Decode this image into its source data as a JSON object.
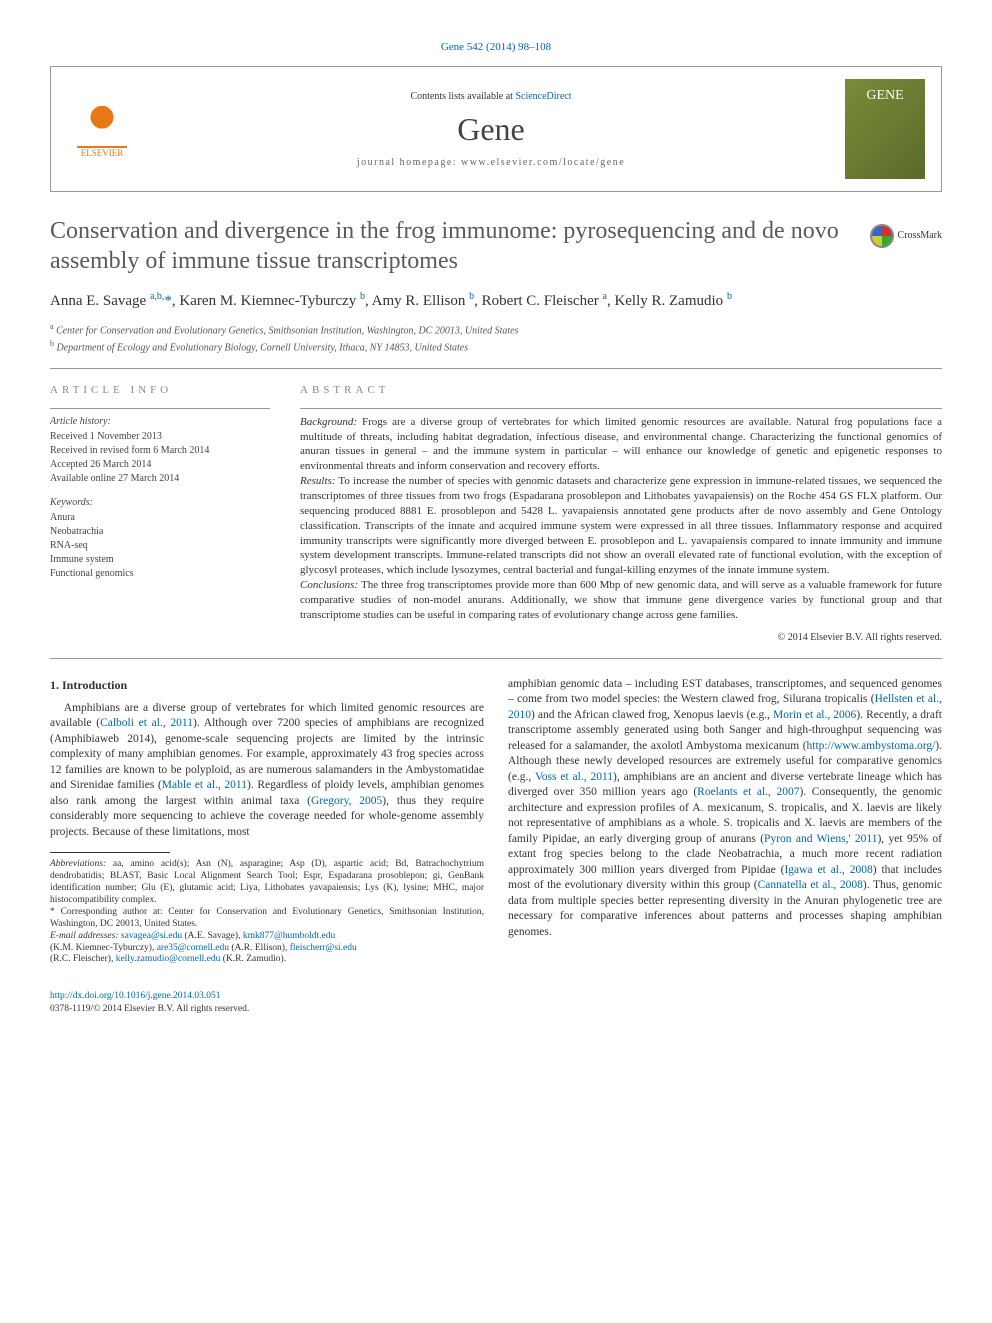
{
  "header": {
    "citation": "Gene 542 (2014) 98–108",
    "contents_prefix": "Contents lists available at ",
    "contents_link": "ScienceDirect",
    "journal": "Gene",
    "homepage_label": "journal homepage: ",
    "homepage_url": "www.elsevier.com/locate/gene",
    "elsevier": "ELSEVIER",
    "cover_label": "GENE"
  },
  "title": "Conservation and divergence in the frog immunome: pyrosequencing and de novo assembly of immune tissue transcriptomes",
  "crossmark": "CrossMark",
  "authors_html": "Anna E. Savage <sup>a,b,</sup><span class='ast'>*</span>, Karen M. Kiemnec-Tyburczy <sup>b</sup>, Amy R. Ellison <sup>b</sup>, Robert C. Fleischer <sup>a</sup>, Kelly R. Zamudio <sup>b</sup>",
  "affiliations": {
    "a": "Center for Conservation and Evolutionary Genetics, Smithsonian Institution, Washington, DC 20013, United States",
    "b": "Department of Ecology and Evolutionary Biology, Cornell University, Ithaca, NY 14853, United States"
  },
  "article_info": {
    "header": "article info",
    "history_header": "Article history:",
    "history": [
      "Received 1 November 2013",
      "Received in revised form 6 March 2014",
      "Accepted 26 March 2014",
      "Available online 27 March 2014"
    ],
    "keywords_header": "Keywords:",
    "keywords": [
      "Anura",
      "Neobatrachia",
      "RNA-seq",
      "Immune system",
      "Functional genomics"
    ]
  },
  "abstract": {
    "header": "abstract",
    "background_label": "Background:",
    "background": "Frogs are a diverse group of vertebrates for which limited genomic resources are available. Natural frog populations face a multitude of threats, including habitat degradation, infectious disease, and environmental change. Characterizing the functional genomics of anuran tissues in general – and the immune system in particular – will enhance our knowledge of genetic and epigenetic responses to environmental threats and inform conservation and recovery efforts.",
    "results_label": "Results:",
    "results": "To increase the number of species with genomic datasets and characterize gene expression in immune-related tissues, we sequenced the transcriptomes of three tissues from two frogs (Espadarana prosoblepon and Lithobates yavapaiensis) on the Roche 454 GS FLX platform. Our sequencing produced 8881 E. prosoblepon and 5428 L. yavapaiensis annotated gene products after de novo assembly and Gene Ontology classification. Transcripts of the innate and acquired immune system were expressed in all three tissues. Inflammatory response and acquired immunity transcripts were significantly more diverged between E. prosoblepon and L. yavapaiensis compared to innate immunity and immune system development transcripts. Immune-related transcripts did not show an overall elevated rate of functional evolution, with the exception of glycosyl proteases, which include lysozymes, central bacterial and fungal-killing enzymes of the innate immune system.",
    "conclusions_label": "Conclusions:",
    "conclusions": "The three frog transcriptomes provide more than 600 Mbp of new genomic data, and will serve as a valuable framework for future comparative studies of non-model anurans. Additionally, we show that immune gene divergence varies by functional group and that transcriptome studies can be useful in comparing rates of evolutionary change across gene families.",
    "copyright": "© 2014 Elsevier B.V. All rights reserved."
  },
  "body": {
    "section1_head": "1. Introduction",
    "col1_p1a": "Amphibians are a diverse group of vertebrates for which limited genomic resources are available (",
    "col1_p1_link1": "Calboli et al., 2011",
    "col1_p1b": "). Although over 7200 species of amphibians are recognized (Amphibiaweb 2014), genome-scale sequencing projects are limited by the intrinsic complexity of many amphibian genomes. For example, approximately 43 frog species across 12 families are known to be polyploid, as are numerous salamanders in the Ambystomatidae and Sirenidae families (",
    "col1_p1_link2": "Mable et al., 2011",
    "col1_p1c": "). Regardless of ploidy levels, amphibian genomes also rank among the largest within animal taxa (",
    "col1_p1_link3": "Gregory, 2005",
    "col1_p1d": "), thus they require considerably more sequencing to achieve the coverage needed for whole-genome assembly projects. Because of these limitations, most",
    "col2_p1a": "amphibian genomic data – including EST databases, transcriptomes, and sequenced genomes – come from two model species: the Western clawed frog, Silurana tropicalis (",
    "col2_link1": "Hellsten et al., 2010",
    "col2_p1b": ") and the African clawed frog, Xenopus laevis (e.g., ",
    "col2_link2": "Morin et al., 2006",
    "col2_p1c": "). Recently, a draft transcriptome assembly generated using both Sanger and high-throughput sequencing was released for a salamander, the axolotl Ambystoma mexicanum (",
    "col2_link3": "http://www.ambystoma.org/",
    "col2_p1d": "). Although these newly developed resources are extremely useful for comparative genomics (e.g., ",
    "col2_link4": "Voss et al., 2011",
    "col2_p1e": "), amphibians are an ancient and diverse vertebrate lineage which has diverged over 350 million years ago (",
    "col2_link5": "Roelants et al., 2007",
    "col2_p1f": "). Consequently, the genomic architecture and expression profiles of A. mexicanum, S. tropicalis, and X. laevis are likely not representative of amphibians as a whole. S. tropicalis and X. laevis are members of the family Pipidae, an early diverging group of anurans (",
    "col2_link6": "Pyron and Wiens,' 2011",
    "col2_p1g": "), yet 95% of extant frog species belong to the clade Neobatrachia, a much more recent radiation approximately 300 million years diverged from Pipidae (",
    "col2_link7": "Igawa et al., 2008",
    "col2_p1h": ") that includes most of the evolutionary diversity within this group (",
    "col2_link8": "Cannatella et al., 2008",
    "col2_p1i": "). Thus, genomic data from multiple species better representing diversity in the Anuran phylogenetic tree are necessary for comparative inferences about patterns and processes shaping amphibian genomes."
  },
  "footnotes": {
    "abbrev_label": "Abbreviations:",
    "abbrev": " aa, amino acid(s); Asn (N), asparagine; Asp (D), aspartic acid; Bd, Batrachochytrium dendrobatidis; BLAST, Basic Local Alignment Search Tool; Espr, Espadarana prosoblepon; gi, GenBank identification number; Glu (E), glutamic acid; Liya, Lithobates yavapaiensis; Lys (K), lysine; MHC, major histocompatibility complex.",
    "corr_label": "* Corresponding author at: ",
    "corr": "Center for Conservation and Evolutionary Genetics, Smithsonian Institution, Washington, DC 20013, United States.",
    "email_label": "E-mail addresses: ",
    "emails": [
      {
        "addr": "savagea@si.edu",
        "who": " (A.E. Savage), "
      },
      {
        "addr": "kmk877@humboldt.edu",
        "who": ""
      }
    ],
    "email_line2_prefix": "(K.M. Kiemnec-Tyburczy), ",
    "email_line2": [
      {
        "addr": "are35@cornell.edu",
        "who": " (A.R. Ellison), "
      },
      {
        "addr": "fleischerr@si.edu",
        "who": ""
      }
    ],
    "email_line3_prefix": "(R.C. Fleischer), ",
    "email_line3": [
      {
        "addr": "kelly.zamudio@cornell.edu",
        "who": " (K.R. Zamudio)."
      }
    ]
  },
  "footer": {
    "doi": "http://dx.doi.org/10.1016/j.gene.2014.03.051",
    "issn": "0378-1119/© 2014 Elsevier B.V. All rights reserved."
  }
}
